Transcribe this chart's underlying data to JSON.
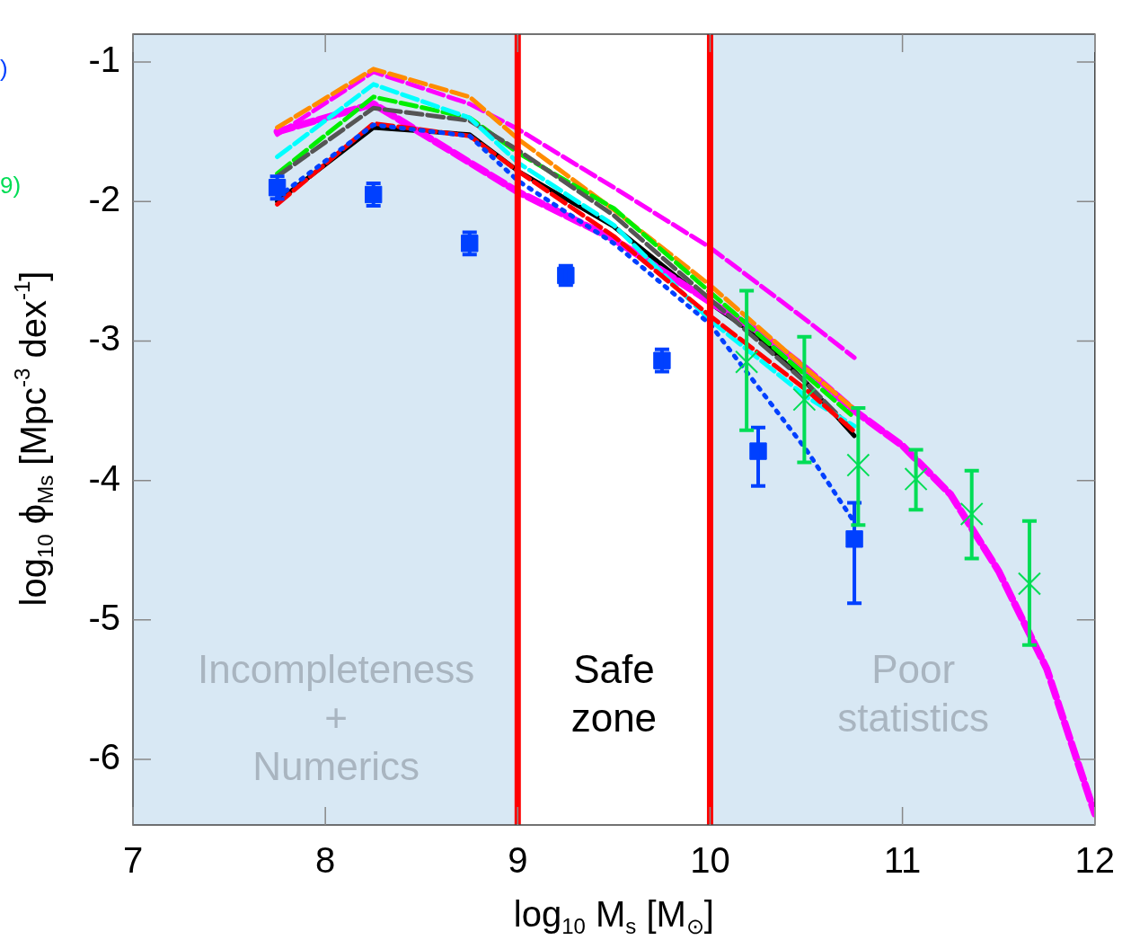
{
  "chart_data": {
    "type": "line",
    "xlabel": "log$_{10}$ M$_{s}$ [M$_{⊙}$]",
    "ylabel": "log$_{10}$ ϕ$_{Ms}$ [Mpc$^{-3}$ dex$^{-1}$]",
    "xlim": [
      7,
      12
    ],
    "xticks": [
      7,
      8,
      9,
      10,
      11,
      12
    ],
    "ylim": [
      -6.47,
      -0.8
    ],
    "yticks": [
      -1,
      -2,
      -3,
      -4,
      -5,
      -6
    ],
    "grid": false,
    "legend": false,
    "series": [
      {
        "color": "#ff00ff",
        "line_style": "dashed",
        "marker": "none",
        "x": [
          7.75,
          8.25,
          8.75,
          9.0,
          9.5,
          10.0,
          10.25,
          10.5,
          10.75,
          11.0,
          11.25,
          11.5,
          11.75,
          12.0
        ],
        "values": [
          -1.5,
          -1.3,
          -1.72,
          -1.93,
          -2.27,
          -2.72,
          -2.93,
          -3.2,
          -3.5,
          -3.75,
          -4.1,
          -4.65,
          -5.35,
          -6.39
        ]
      },
      {
        "color": "#ff00ff",
        "line_style": "dashed",
        "marker": "none",
        "x": [
          7.75,
          8.25,
          8.75,
          9.0,
          9.5,
          10.0,
          10.5,
          10.75
        ],
        "values": [
          -1.52,
          -1.07,
          -1.3,
          -1.48,
          -1.9,
          -2.33,
          -2.85,
          -3.12
        ]
      },
      {
        "color": "#ff8c00",
        "line_style": "dashed",
        "marker": "none",
        "x": [
          7.75,
          8.25,
          8.75,
          9.0,
          9.5,
          10.0,
          10.5,
          10.75
        ],
        "values": [
          -1.47,
          -1.05,
          -1.25,
          -1.55,
          -2.06,
          -2.6,
          -3.2,
          -3.49
        ]
      },
      {
        "color": "#00ee00",
        "line_style": "dashed",
        "marker": "none",
        "x": [
          7.75,
          8.25,
          8.75,
          9.0,
          9.5,
          10.0,
          10.5,
          10.75
        ],
        "values": [
          -1.8,
          -1.25,
          -1.4,
          -1.65,
          -2.05,
          -2.65,
          -3.25,
          -3.55
        ]
      },
      {
        "color": "#555555",
        "line_style": "dashed",
        "marker": "none",
        "x": [
          7.75,
          8.25,
          8.75,
          9.0,
          9.5,
          10.0,
          10.5,
          10.75
        ],
        "values": [
          -1.82,
          -1.33,
          -1.42,
          -1.63,
          -2.1,
          -2.7,
          -3.3,
          -3.65
        ]
      },
      {
        "color": "#00ffff",
        "line_style": "dashed",
        "marker": "none",
        "x": [
          7.75,
          8.25,
          8.75,
          9.0,
          9.5,
          10.0,
          10.5,
          10.75
        ],
        "values": [
          -1.68,
          -1.16,
          -1.4,
          -1.72,
          -2.17,
          -2.85,
          -3.4,
          -3.61
        ]
      },
      {
        "color": "#ff0000",
        "line_style": "dashed",
        "marker": "none",
        "x": [
          7.75,
          8.25,
          8.75,
          9.0,
          9.5,
          10.0,
          10.5,
          10.75
        ],
        "values": [
          -2.02,
          -1.44,
          -1.53,
          -1.78,
          -2.25,
          -2.82,
          -3.35,
          -3.65
        ]
      },
      {
        "color": "#0040ff",
        "line_style": "dotted",
        "marker": "none",
        "x": [
          7.75,
          8.25,
          8.75,
          9.0,
          9.5,
          10.0,
          10.5,
          10.75
        ],
        "values": [
          -1.97,
          -1.45,
          -1.53,
          -1.85,
          -2.3,
          -2.88,
          -3.78,
          -4.3
        ]
      },
      {
        "color": "#000000",
        "line_style": "solid",
        "marker": "none",
        "x": [
          7.75,
          8.25,
          8.75,
          9.0,
          9.5,
          10.0,
          10.25,
          10.5,
          10.75
        ],
        "values": [
          -2.0,
          -1.47,
          -1.52,
          -1.78,
          -2.18,
          -2.73,
          -2.97,
          -3.3,
          -3.68
        ]
      },
      {
        "type": "scatter",
        "color": "#0040ff",
        "marker": "square",
        "x": [
          7.75,
          8.25,
          8.75,
          9.25,
          9.75,
          10.25,
          10.75
        ],
        "values": [
          -1.9,
          -1.95,
          -2.3,
          -2.53,
          -3.14,
          -3.79,
          -4.42
        ],
        "errors": [
          0.08,
          0.08,
          0.08,
          0.07,
          0.08,
          [
            -4.04,
            -3.62
          ],
          [
            -4.88,
            -4.16
          ]
        ]
      },
      {
        "type": "scatter",
        "color": "#00dd55",
        "marker": "cross",
        "x": [
          10.19,
          10.49,
          10.77,
          11.07,
          11.36,
          11.66
        ],
        "values": [
          -3.15,
          -3.42,
          -3.89,
          -3.99,
          -4.24,
          -4.74
        ],
        "errors": [
          [
            -3.64,
            -2.64
          ],
          [
            -3.87,
            -2.97
          ],
          [
            -4.32,
            -3.48
          ],
          [
            -4.21,
            -3.78
          ],
          [
            -4.56,
            -3.93
          ],
          [
            -5.18,
            -4.29
          ]
        ]
      }
    ],
    "bands": [
      {
        "axis": "x",
        "from": 7,
        "to": 9,
        "label": "Incompleteness\n+\nNumerics",
        "color": "#d8e8f4"
      },
      {
        "axis": "x",
        "from": 10,
        "to": 12,
        "label": "Poor\nstatistics",
        "color": "#d8e8f4"
      }
    ],
    "ref_lines": [
      {
        "axis": "x",
        "value": 9,
        "color": "#ff0000"
      },
      {
        "axis": "x",
        "value": 10,
        "color": "#ff0000"
      }
    ],
    "annotations": [
      "Safe\nzone",
      ")",
      "9)"
    ]
  }
}
